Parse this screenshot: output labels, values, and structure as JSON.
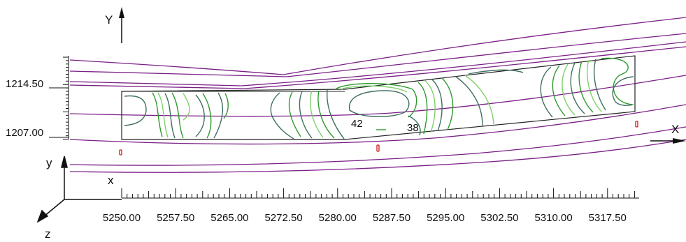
{
  "view": {
    "axis_labels": {
      "big_y": "Y",
      "big_x": "X",
      "triad_y": "y",
      "triad_x": "x",
      "triad_z": "z"
    },
    "x_ticks": [
      "5250.00",
      "5257.50",
      "5265.00",
      "5272.50",
      "5280.00",
      "5287.50",
      "5295.00",
      "5302.50",
      "5310.00",
      "5317.50"
    ],
    "y_ticks": [
      "1214.50",
      "1207.00"
    ],
    "contour_labels": [
      "42",
      "38"
    ],
    "colors": {
      "road_lines": "#7a1f86",
      "contour_dark": "#3f6f5f",
      "contour_mid": "#2e9a2e",
      "contour_light": "#7fd06a",
      "outline": "#222222",
      "markers": "#d01818"
    }
  }
}
